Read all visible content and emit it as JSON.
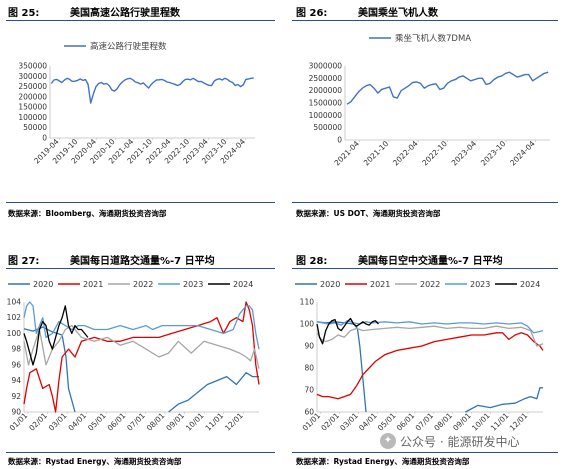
{
  "figures": [
    {
      "num": "图 25:",
      "title": "美国高速公路行驶里程数",
      "source": "数据来源：Bloomberg、海通期货投资咨询部",
      "chart_data": {
        "type": "line",
        "legend": [
          "高速公路行驶里程数"
        ],
        "legend_placement": "top",
        "ylim": [
          0,
          350000
        ],
        "yticks": [
          0,
          50000,
          100000,
          150000,
          200000,
          250000,
          300000,
          350000
        ],
        "xticks": [
          "2019-04",
          "2019-10",
          "2020-04",
          "2020-10",
          "2021-04",
          "2021-10",
          "2022-04",
          "2022-10",
          "2023-04",
          "2023-10",
          "2024-04"
        ],
        "color": "#4472c4",
        "series": [
          {
            "name": "高速公路行驶里程数",
            "x_start": "2019-01",
            "step": "1 month",
            "values": [
              265000,
              282000,
              285000,
              278000,
              270000,
              282000,
              290000,
              285000,
              275000,
              276000,
              280000,
              287000,
              280000,
              284000,
              260000,
              170000,
              215000,
              250000,
              265000,
              270000,
              262000,
              265000,
              255000,
              235000,
              228000,
              238000,
              258000,
              272000,
              282000,
              288000,
              290000,
              283000,
              272000,
              269000,
              262000,
              268000,
              255000,
              243000,
              260000,
              272000,
              282000,
              283000,
              285000,
              280000,
              272000,
              270000,
              265000,
              261000,
              255000,
              260000,
              274000,
              285000,
              286000,
              283000,
              290000,
              282000,
              274000,
              275000,
              268000,
              261000,
              256000,
              255000,
              277000,
              285000,
              288000,
              282000,
              290000,
              285000,
              275000,
              270000,
              255000,
              260000,
              250000,
              258000,
              285000,
              287000,
              290000,
              292000
            ]
          }
        ]
      }
    },
    {
      "num": "图 26:",
      "title": "美国乘坐飞机人数",
      "source": "数据来源：US DOT、海通期货投资咨询部",
      "chart_data": {
        "type": "line",
        "legend": [
          "乘坐飞机人数7DMA"
        ],
        "legend_placement": "top",
        "ylim": [
          0,
          3000000
        ],
        "yticks": [
          0,
          500000,
          1000000,
          1500000,
          2000000,
          2500000,
          3000000
        ],
        "xticks": [
          "2021-04",
          "2021-10",
          "2022-04",
          "2022-10",
          "2023-04",
          "2023-10",
          "2024-04"
        ],
        "color": "#4472c4",
        "series": [
          {
            "name": "乘坐飞机人数7DMA",
            "x_start": "2021-01",
            "step": "1 month",
            "values": [
              1450000,
              1550000,
              1750000,
              1950000,
              2100000,
              2200000,
              2250000,
              2100000,
              1900000,
              2050000,
              2100000,
              2150000,
              1750000,
              1700000,
              2000000,
              2100000,
              2200000,
              2330000,
              2350000,
              2300000,
              2100000,
              2200000,
              2250000,
              2280000,
              2050000,
              2100000,
              2300000,
              2400000,
              2450000,
              2550000,
              2600000,
              2500000,
              2400000,
              2450000,
              2500000,
              2500000,
              2250000,
              2300000,
              2450000,
              2550000,
              2600000,
              2700000,
              2750000,
              2650000,
              2550000,
              2600000,
              2650000,
              2650000,
              2400000,
              2500000,
              2600000,
              2700000,
              2750000
            ]
          }
        ]
      }
    },
    {
      "num": "图 27:",
      "title": "美国每日道路交通量%-7 日平均",
      "source": "数据来源：Rystad Energy、海通期货投资咨询部",
      "chart_data": {
        "type": "line",
        "legend": [
          "2020",
          "2021",
          "2022",
          "2023",
          "2024"
        ],
        "legend_placement": "top",
        "ylim": [
          90,
          104
        ],
        "yticks": [
          90,
          92,
          94,
          96,
          98,
          100,
          102,
          104
        ],
        "xticks": [
          "01/01",
          "02/01",
          "03/01",
          "04/01",
          "05/01",
          "06/01",
          "07/01",
          "08/01",
          "09/01",
          "10/01",
          "11/01",
          "12/01"
        ],
        "x_unit": "day-of-year",
        "series": [
          {
            "name": "2020",
            "color": "#2e75b6",
            "x": [
              1,
              15,
              30,
              45,
              60,
              66,
              70,
              80
            ],
            "values": [
              100.6,
              100.3,
              100.8,
              100.2,
              99.8,
              97.0,
              93.0,
              90.0
            ]
          },
          {
            "name": "2020",
            "color": "#2e75b6",
            "x": [
              225,
              240,
              255,
              270,
              285,
              300,
              315,
              330,
              345,
              355,
              365
            ],
            "values": [
              90.0,
              91.0,
              91.5,
              92.5,
              93.5,
              94.0,
              94.5,
              93.5,
              95.0,
              94.5,
              94.5
            ]
          },
          {
            "name": "2021",
            "color": "#e00000",
            "x": [
              1,
              5,
              10,
              20,
              30,
              40,
              45,
              50,
              55,
              60,
              70,
              80,
              90,
              110,
              130,
              150,
              170,
              190,
              210,
              230,
              250,
              270,
              290,
              300,
              310,
              320,
              330,
              340,
              345,
              350,
              355,
              360,
              365
            ],
            "values": [
              91.0,
              93.0,
              95.0,
              95.5,
              93.0,
              93.5,
              92.0,
              90.0,
              94.0,
              97.0,
              98.0,
              97.0,
              99.0,
              99.5,
              99.0,
              99.0,
              99.5,
              99.5,
              99.5,
              100.0,
              100.5,
              101.0,
              101.5,
              102.0,
              100.0,
              101.5,
              102.0,
              101.5,
              104.0,
              103.0,
              101.0,
              96.0,
              93.5
            ]
          },
          {
            "name": "2022",
            "color": "#a6a6a6",
            "x": [
              1,
              8,
              15,
              25,
              35,
              45,
              55,
              65,
              75,
              90,
              110,
              130,
              150,
              170,
              190,
              210,
              225,
              240,
              260,
              280,
              300,
              320,
              335,
              345,
              352,
              358,
              365
            ],
            "values": [
              99.0,
              96.0,
              98.0,
              100.5,
              96.0,
              98.0,
              99.0,
              100.5,
              101.0,
              99.5,
              99.0,
              99.5,
              98.5,
              99.0,
              98.0,
              97.0,
              97.5,
              99.0,
              97.5,
              99.0,
              98.5,
              98.0,
              97.5,
              97.0,
              96.5,
              98.0,
              95.5
            ]
          },
          {
            "name": "2023",
            "color": "#5b9bd5",
            "x": [
              1,
              5,
              10,
              15,
              20,
              25,
              30,
              35,
              45,
              55,
              65,
              75,
              85,
              95,
              110,
              130,
              150,
              170,
              190,
              200,
              215,
              230,
              250,
              270,
              290,
              310,
              325,
              335,
              345,
              350,
              355,
              360,
              365
            ],
            "values": [
              102.0,
              103.5,
              104.0,
              103.5,
              100.0,
              101.0,
              102.0,
              99.5,
              100.0,
              101.5,
              101.0,
              100.5,
              101.0,
              101.0,
              100.5,
              100.5,
              101.0,
              100.5,
              101.0,
              100.5,
              101.0,
              101.0,
              101.0,
              101.0,
              100.5,
              100.0,
              100.5,
              102.5,
              103.5,
              103.5,
              103.0,
              100.0,
              98.0
            ]
          },
          {
            "name": "2024",
            "color": "#000000",
            "x": [
              1,
              5,
              10,
              15,
              20,
              25,
              30,
              35,
              40,
              45,
              50,
              55,
              60,
              65,
              70,
              75,
              80,
              85,
              90,
              95,
              100
            ],
            "values": [
              100.0,
              99.0,
              97.5,
              96.0,
              97.5,
              100.5,
              101.5,
              101.0,
              99.0,
              98.0,
              99.5,
              101.0,
              102.0,
              103.5,
              101.0,
              100.0,
              101.0,
              100.5,
              100.5,
              100.0,
              99.5
            ]
          }
        ]
      }
    },
    {
      "num": "图 28:",
      "title": "美国每日空中交通量%-7 日平均",
      "source": "数据来源：Rystad Energy、海通期货投资咨询部",
      "chart_data": {
        "type": "line",
        "legend": [
          "2020",
          "2021",
          "2022",
          "2023",
          "2024"
        ],
        "legend_placement": "top",
        "ylim": [
          60,
          110
        ],
        "yticks": [
          60,
          70,
          80,
          90,
          100,
          110
        ],
        "xticks": [
          "01/01",
          "02/01",
          "03/01",
          "04/01",
          "05/01",
          "06/01",
          "07/01",
          "08/01",
          "09/01",
          "10/01",
          "11/01",
          "12/01"
        ],
        "x_unit": "day-of-year",
        "series": [
          {
            "name": "2020",
            "color": "#2e75b6",
            "x": [
              1,
              15,
              30,
              45,
              60,
              66,
              70,
              75,
              80
            ],
            "values": [
              101.0,
              100.5,
              101.0,
              100.5,
              100.0,
              98.0,
              90.0,
              75.0,
              60.0
            ]
          },
          {
            "name": "2020",
            "color": "#2e75b6",
            "x": [
              240,
              260,
              280,
              300,
              320,
              335,
              345,
              355,
              360,
              365
            ],
            "values": [
              60.0,
              63.0,
              62.0,
              63.5,
              64.0,
              66.0,
              67.0,
              66.0,
              71.0,
              71.0
            ]
          },
          {
            "name": "2021",
            "color": "#e00000",
            "x": [
              1,
              10,
              20,
              35,
              45,
              55,
              65,
              75,
              85,
              95,
              110,
              130,
              150,
              170,
              190,
              210,
              230,
              250,
              270,
              290,
              300,
              310,
              320,
              330,
              340,
              350,
              360,
              365
            ],
            "values": [
              68.0,
              67.0,
              67.0,
              66.0,
              67.0,
              68.0,
              72.0,
              77.0,
              80.0,
              83.0,
              86.0,
              88.0,
              89.0,
              90.0,
              92.0,
              93.0,
              94.0,
              95.0,
              95.0,
              96.0,
              96.0,
              93.0,
              95.0,
              96.0,
              95.0,
              92.0,
              90.0,
              88.0
            ]
          },
          {
            "name": "2022",
            "color": "#a6a6a6",
            "x": [
              1,
              8,
              15,
              25,
              35,
              45,
              55,
              65,
              75,
              90,
              110,
              130,
              150,
              170,
              190,
              210,
              230,
              250,
              270,
              290,
              310,
              330,
              345,
              355,
              365
            ],
            "values": [
              96.0,
              93.0,
              92.0,
              93.0,
              95.0,
              94.0,
              97.0,
              98.0,
              97.0,
              97.5,
              98.0,
              98.5,
              98.0,
              98.5,
              99.0,
              98.0,
              98.5,
              98.0,
              98.0,
              99.0,
              98.0,
              98.5,
              97.0,
              90.0,
              91.0
            ]
          },
          {
            "name": "2023",
            "color": "#5b9bd5",
            "x": [
              1,
              10,
              20,
              30,
              40,
              50,
              60,
              70,
              80,
              90,
              110,
              130,
              150,
              170,
              190,
              210,
              230,
              250,
              270,
              290,
              310,
              330,
              340,
              350,
              358,
              365
            ],
            "values": [
              101.0,
              100.5,
              100.0,
              100.5,
              99.5,
              101.5,
              100.5,
              100.0,
              101.0,
              100.5,
              101.0,
              100.5,
              101.0,
              100.0,
              100.5,
              100.0,
              100.5,
              100.5,
              100.0,
              100.5,
              100.0,
              100.5,
              99.0,
              96.0,
              96.5,
              97.0
            ]
          },
          {
            "name": "2024",
            "color": "#000000",
            "x": [
              1,
              5,
              10,
              15,
              20,
              25,
              30,
              35,
              40,
              45,
              50,
              55,
              60,
              65,
              70,
              75,
              80,
              85,
              90,
              95,
              100
            ],
            "values": [
              100.0,
              94.0,
              91.0,
              97.0,
              100.0,
              101.5,
              102.0,
              98.0,
              97.0,
              99.0,
              101.0,
              102.5,
              100.0,
              99.0,
              100.0,
              101.0,
              100.0,
              99.5,
              101.0,
              101.5,
              100.0
            ]
          }
        ]
      }
    }
  ],
  "footer": {
    "brand_text": "公众号 · 能源研发中心"
  }
}
